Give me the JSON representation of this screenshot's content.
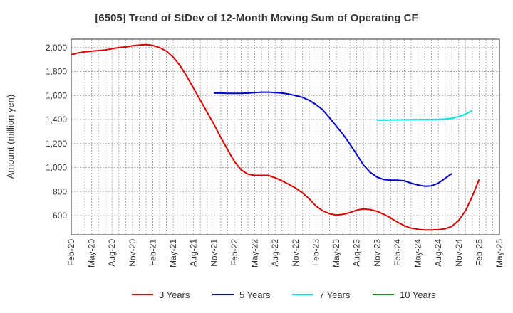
{
  "chart_data": {
    "type": "line",
    "title": "[6505]  Trend of StDev of 12-Month Moving Sum of Operating CF",
    "xlabel": "",
    "ylabel": "Amount (million yen)",
    "ylim": [
      440,
      2070
    ],
    "yticks": [
      600,
      800,
      1000,
      1200,
      1400,
      1600,
      1800,
      2000
    ],
    "ytick_labels": [
      "600",
      "800",
      "1,000",
      "1,200",
      "1,400",
      "1,600",
      "1,800",
      "2,000"
    ],
    "xtick_labels": [
      "Feb-20",
      "May-20",
      "Aug-20",
      "Nov-20",
      "Feb-21",
      "May-21",
      "Aug-21",
      "Nov-21",
      "Feb-22",
      "May-22",
      "Aug-22",
      "Nov-22",
      "Feb-23",
      "May-23",
      "Aug-23",
      "Nov-23",
      "Feb-24",
      "May-24",
      "Aug-24",
      "Nov-24",
      "Feb-25",
      "May-25"
    ],
    "grid": true,
    "legend_position": "bottom",
    "series": [
      {
        "name": "3 Years",
        "color": "#dd0000",
        "x_start": "Feb-20",
        "values": [
          1940,
          1955,
          1965,
          1970,
          1975,
          1980,
          1990,
          2000,
          2005,
          2015,
          2020,
          2025,
          2018,
          2000,
          1970,
          1920,
          1850,
          1760,
          1660,
          1560,
          1460,
          1360,
          1250,
          1150,
          1050,
          980,
          945,
          935,
          935,
          935,
          915,
          890,
          860,
          830,
          790,
          740,
          680,
          640,
          615,
          605,
          610,
          625,
          645,
          655,
          650,
          635,
          610,
          580,
          545,
          515,
          495,
          485,
          480,
          480,
          482,
          490,
          510,
          560,
          640,
          760,
          900
        ]
      },
      {
        "name": "5 Years",
        "color": "#0000cc",
        "x_start": "Nov-21",
        "values": [
          1620,
          1620,
          1618,
          1618,
          1618,
          1620,
          1625,
          1628,
          1628,
          1625,
          1620,
          1612,
          1600,
          1585,
          1560,
          1525,
          1480,
          1415,
          1345,
          1275,
          1195,
          1110,
          1020,
          960,
          920,
          900,
          895,
          895,
          890,
          870,
          855,
          845,
          848,
          870,
          910,
          950
        ]
      },
      {
        "name": "7 Years",
        "color": "#00e5e5",
        "x_start": "Nov-23",
        "values": [
          1395,
          1395,
          1396,
          1397,
          1398,
          1399,
          1400,
          1400,
          1401,
          1402,
          1405,
          1410,
          1425,
          1445,
          1475
        ]
      },
      {
        "name": "10 Years",
        "color": "#228b22",
        "x_start": "Nov-24",
        "values": []
      }
    ]
  }
}
